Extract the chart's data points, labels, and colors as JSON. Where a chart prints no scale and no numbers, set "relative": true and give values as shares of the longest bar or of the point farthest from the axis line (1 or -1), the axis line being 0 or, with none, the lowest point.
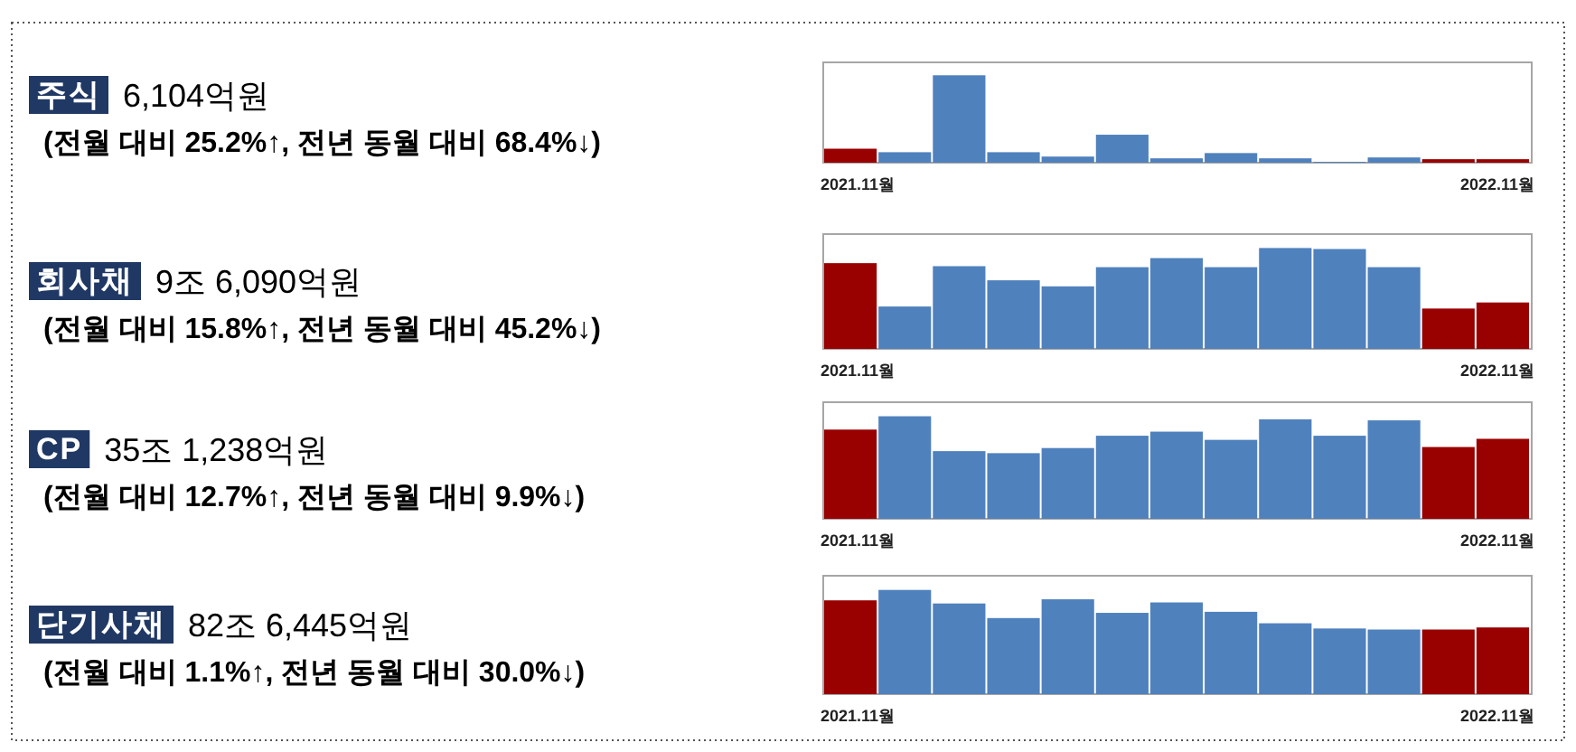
{
  "chart_data": [
    {
      "type": "bar",
      "annotations": [
        "주식",
        "6,104억원",
        "(전월 대비 25.2%↑, 전년 동월 대비 68.4%↓)"
      ],
      "relative": true,
      "categories": [
        "2021.11월",
        null,
        null,
        null,
        null,
        null,
        null,
        null,
        null,
        null,
        null,
        null,
        "2022.11월"
      ],
      "values": [
        0.16,
        0.12,
        1,
        0.12,
        0.07,
        0.32,
        0.05,
        0.11,
        0.05,
        0.01,
        0.06,
        0.04,
        0.04
      ],
      "colors": [
        "#990000",
        "#4f81bd",
        "#4f81bd",
        "#4f81bd",
        "#4f81bd",
        "#4f81bd",
        "#4f81bd",
        "#4f81bd",
        "#4f81bd",
        "#4f81bd",
        "#4f81bd",
        "#990000",
        "#990000"
      ]
    },
    {
      "type": "bar",
      "annotations": [
        "회사채",
        "9조 6,090억원",
        "(전월 대비 15.8%↑, 전년 동월 대비 45.2%↓)"
      ],
      "relative": true,
      "categories": [
        "2021.11월",
        null,
        null,
        null,
        null,
        null,
        null,
        null,
        null,
        null,
        null,
        null,
        "2022.11월"
      ],
      "values": [
        0.85,
        0.42,
        0.82,
        0.68,
        0.62,
        0.81,
        0.9,
        0.81,
        1,
        0.99,
        0.81,
        0.4,
        0.46
      ],
      "colors": [
        "#990000",
        "#4f81bd",
        "#4f81bd",
        "#4f81bd",
        "#4f81bd",
        "#4f81bd",
        "#4f81bd",
        "#4f81bd",
        "#4f81bd",
        "#4f81bd",
        "#4f81bd",
        "#990000",
        "#990000"
      ]
    },
    {
      "type": "bar",
      "annotations": [
        "CP",
        "35조 1,238억원",
        "(전월 대비 12.7%↑, 전년 동월 대비 9.9%↓)"
      ],
      "relative": true,
      "categories": [
        "2021.11월",
        null,
        null,
        null,
        null,
        null,
        null,
        null,
        null,
        null,
        null,
        null,
        "2022.11월"
      ],
      "values": [
        0.87,
        1,
        0.66,
        0.64,
        0.69,
        0.81,
        0.85,
        0.77,
        0.97,
        0.81,
        0.96,
        0.7,
        0.78
      ],
      "colors": [
        "#990000",
        "#4f81bd",
        "#4f81bd",
        "#4f81bd",
        "#4f81bd",
        "#4f81bd",
        "#4f81bd",
        "#4f81bd",
        "#4f81bd",
        "#4f81bd",
        "#4f81bd",
        "#990000",
        "#990000"
      ]
    },
    {
      "type": "bar",
      "annotations": [
        "단기사채",
        "82조 6,445억원",
        "(전월 대비 1.1%↑, 전년 동월 대비 30.0%↓)"
      ],
      "relative": true,
      "categories": [
        "2021.11월",
        null,
        null,
        null,
        null,
        null,
        null,
        null,
        null,
        null,
        null,
        null,
        "2022.11월"
      ],
      "values": [
        0.9,
        1,
        0.87,
        0.73,
        0.91,
        0.78,
        0.88,
        0.79,
        0.68,
        0.63,
        0.62,
        0.62,
        0.64
      ],
      "colors": [
        "#990000",
        "#4f81bd",
        "#4f81bd",
        "#4f81bd",
        "#4f81bd",
        "#4f81bd",
        "#4f81bd",
        "#4f81bd",
        "#4f81bd",
        "#4f81bd",
        "#4f81bd",
        "#990000",
        "#990000"
      ]
    }
  ]
}
